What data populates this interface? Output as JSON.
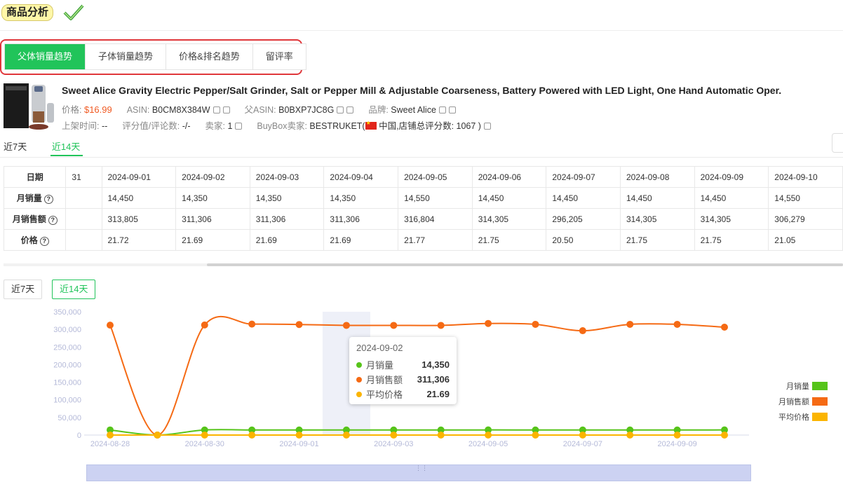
{
  "header": {
    "title": "商品分析"
  },
  "tabs": [
    {
      "label": "父体销量趋势",
      "active": true
    },
    {
      "label": "子体销量趋势",
      "active": false
    },
    {
      "label": "价格&排名趋势",
      "active": false
    },
    {
      "label": "留评率",
      "active": false
    }
  ],
  "product": {
    "title": "Sweet Alice Gravity Electric Pepper/Salt Grinder, Salt or Pepper Mill & Adjustable Coarseness, Battery Powered with LED Light, One Hand Automatic Oper.",
    "price_label": "价格:",
    "price": "$16.99",
    "asin_label": "ASIN:",
    "asin": "B0CM8X384W",
    "parent_asin_label": "父ASIN:",
    "parent_asin": "B0BXP7JC8G",
    "brand_label": "品牌:",
    "brand": "Sweet Alice",
    "launch_label": "上架时间:",
    "launch": "--",
    "rating_label": "评分值/评论数:",
    "rating": "-/-",
    "sellers_label": "卖家:",
    "sellers": "1",
    "buybox_label": "BuyBox卖家:",
    "buybox_seller": "BESTRUKET(",
    "buybox_country": "中国,店铺总评分数: 1067 )"
  },
  "range_tabs": [
    {
      "label": "近7天",
      "active": false
    },
    {
      "label": "近14天",
      "active": true
    }
  ],
  "table": {
    "row_headers": [
      "日期",
      "月销量",
      "月销售额",
      "价格"
    ],
    "first_col": [
      "31",
      "",
      "",
      ""
    ],
    "columns": [
      {
        "date": "2024-09-01",
        "sales": "14,450",
        "revenue": "313,805",
        "price": "21.72"
      },
      {
        "date": "2024-09-02",
        "sales": "14,350",
        "revenue": "311,306",
        "price": "21.69"
      },
      {
        "date": "2024-09-03",
        "sales": "14,350",
        "revenue": "311,306",
        "price": "21.69"
      },
      {
        "date": "2024-09-04",
        "sales": "14,350",
        "revenue": "311,306",
        "price": "21.69"
      },
      {
        "date": "2024-09-05",
        "sales": "14,550",
        "revenue": "316,804",
        "price": "21.77"
      },
      {
        "date": "2024-09-06",
        "sales": "14,450",
        "revenue": "314,305",
        "price": "21.75"
      },
      {
        "date": "2024-09-07",
        "sales": "14,450",
        "revenue": "296,205",
        "price": "20.50"
      },
      {
        "date": "2024-09-08",
        "sales": "14,450",
        "revenue": "314,305",
        "price": "21.75"
      },
      {
        "date": "2024-09-09",
        "sales": "14,450",
        "revenue": "314,305",
        "price": "21.75"
      },
      {
        "date": "2024-09-10",
        "sales": "14,550",
        "revenue": "306,279",
        "price": "21.05"
      }
    ]
  },
  "chart_buttons": [
    {
      "label": "近7天",
      "active": false
    },
    {
      "label": "近14天",
      "active": true
    }
  ],
  "tooltip": {
    "date": "2024-09-02",
    "rows": [
      {
        "label": "月销量",
        "value": "14,350"
      },
      {
        "label": "月销售额",
        "value": "311,306"
      },
      {
        "label": "平均价格",
        "value": "21.69"
      }
    ]
  },
  "colors": {
    "accent": "#21c45a",
    "sales": "#56c41a",
    "revenue": "#f56a14",
    "price": "#fbb400"
  },
  "chart_data": {
    "type": "line",
    "title": "",
    "x": [
      "2024-08-28",
      "2024-08-29",
      "2024-08-30",
      "2024-08-31",
      "2024-09-01",
      "2024-09-02",
      "2024-09-03",
      "2024-09-04",
      "2024-09-05",
      "2024-09-06",
      "2024-09-07",
      "2024-09-08",
      "2024-09-09",
      "2024-09-10"
    ],
    "x_tick_labels": [
      "2024-08-28",
      "2024-08-30",
      "2024-09-01",
      "2024-09-03",
      "2024-09-05",
      "2024-09-07",
      "2024-09-09"
    ],
    "y_ticks": [
      "0",
      "50,000",
      "100,000",
      "150,000",
      "200,000",
      "250,000",
      "300,000",
      "350,000"
    ],
    "ylim": [
      0,
      350000
    ],
    "highlight_index": 5,
    "series": [
      {
        "name": "月销量",
        "values": [
          14500,
          0,
          14400,
          14450,
          14450,
          14350,
          14350,
          14350,
          14550,
          14450,
          14450,
          14450,
          14450,
          14550
        ]
      },
      {
        "name": "月销售额",
        "values": [
          312000,
          0,
          312500,
          315000,
          313805,
          311306,
          311306,
          311306,
          316804,
          314305,
          296205,
          314305,
          314305,
          306279
        ]
      },
      {
        "name": "平均价格",
        "values": [
          21.6,
          0,
          21.7,
          21.7,
          21.72,
          21.69,
          21.69,
          21.69,
          21.77,
          21.75,
          20.5,
          21.75,
          21.75,
          21.05
        ]
      }
    ]
  }
}
